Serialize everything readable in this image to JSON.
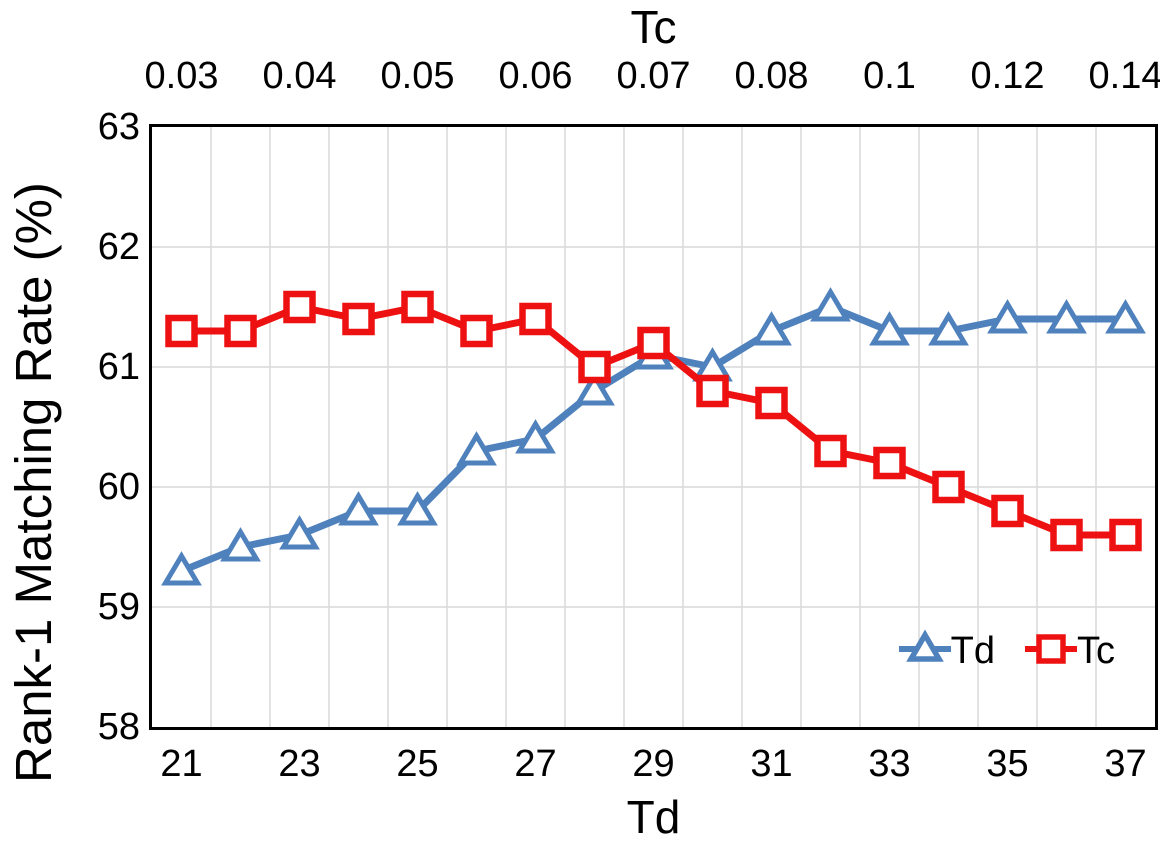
{
  "chart_data": {
    "type": "line",
    "title": "",
    "x_td": [
      21,
      22,
      23,
      24,
      25,
      26,
      27,
      28,
      29,
      30,
      31,
      32,
      33,
      34,
      35,
      36,
      37
    ],
    "top_axis": {
      "title": "Tc",
      "tick_labels": [
        "0.03",
        "0.04",
        "0.05",
        "0.06",
        "0.07",
        "0.08",
        "0.1",
        "0.12",
        "0.14"
      ]
    },
    "bottom_axis": {
      "title": "Td",
      "tick_labels": [
        "21",
        "23",
        "25",
        "27",
        "29",
        "31",
        "33",
        "35",
        "37"
      ]
    },
    "y_axis": {
      "title": "Rank-1 Matching Rate (%)",
      "tick_labels": [
        "63",
        "62",
        "61",
        "60",
        "59",
        "58"
      ],
      "tick_values": [
        63,
        62,
        61,
        60,
        59,
        58
      ],
      "ylim": [
        58,
        63
      ]
    },
    "grid": true,
    "legend_position": "inside-bottom-right",
    "series": [
      {
        "name": "Td",
        "marker": "triangle",
        "color": "#4f81bd",
        "values": [
          59.3,
          59.5,
          59.6,
          59.8,
          59.8,
          60.3,
          60.4,
          60.8,
          61.1,
          61.0,
          61.3,
          61.5,
          61.3,
          61.3,
          61.4,
          61.4,
          61.4
        ]
      },
      {
        "name": "Tc",
        "marker": "square",
        "color": "#ee1111",
        "values": [
          61.3,
          61.3,
          61.5,
          61.4,
          61.5,
          61.3,
          61.4,
          61.0,
          61.2,
          60.8,
          60.7,
          60.3,
          60.2,
          60.0,
          59.8,
          59.6,
          59.6
        ]
      }
    ]
  },
  "colors": {
    "series_td": "#4f81bd",
    "series_tc": "#ee1111",
    "gridline": "#d9d9d9",
    "axis_line": "#000000",
    "text": "#000000",
    "background": "#ffffff"
  }
}
